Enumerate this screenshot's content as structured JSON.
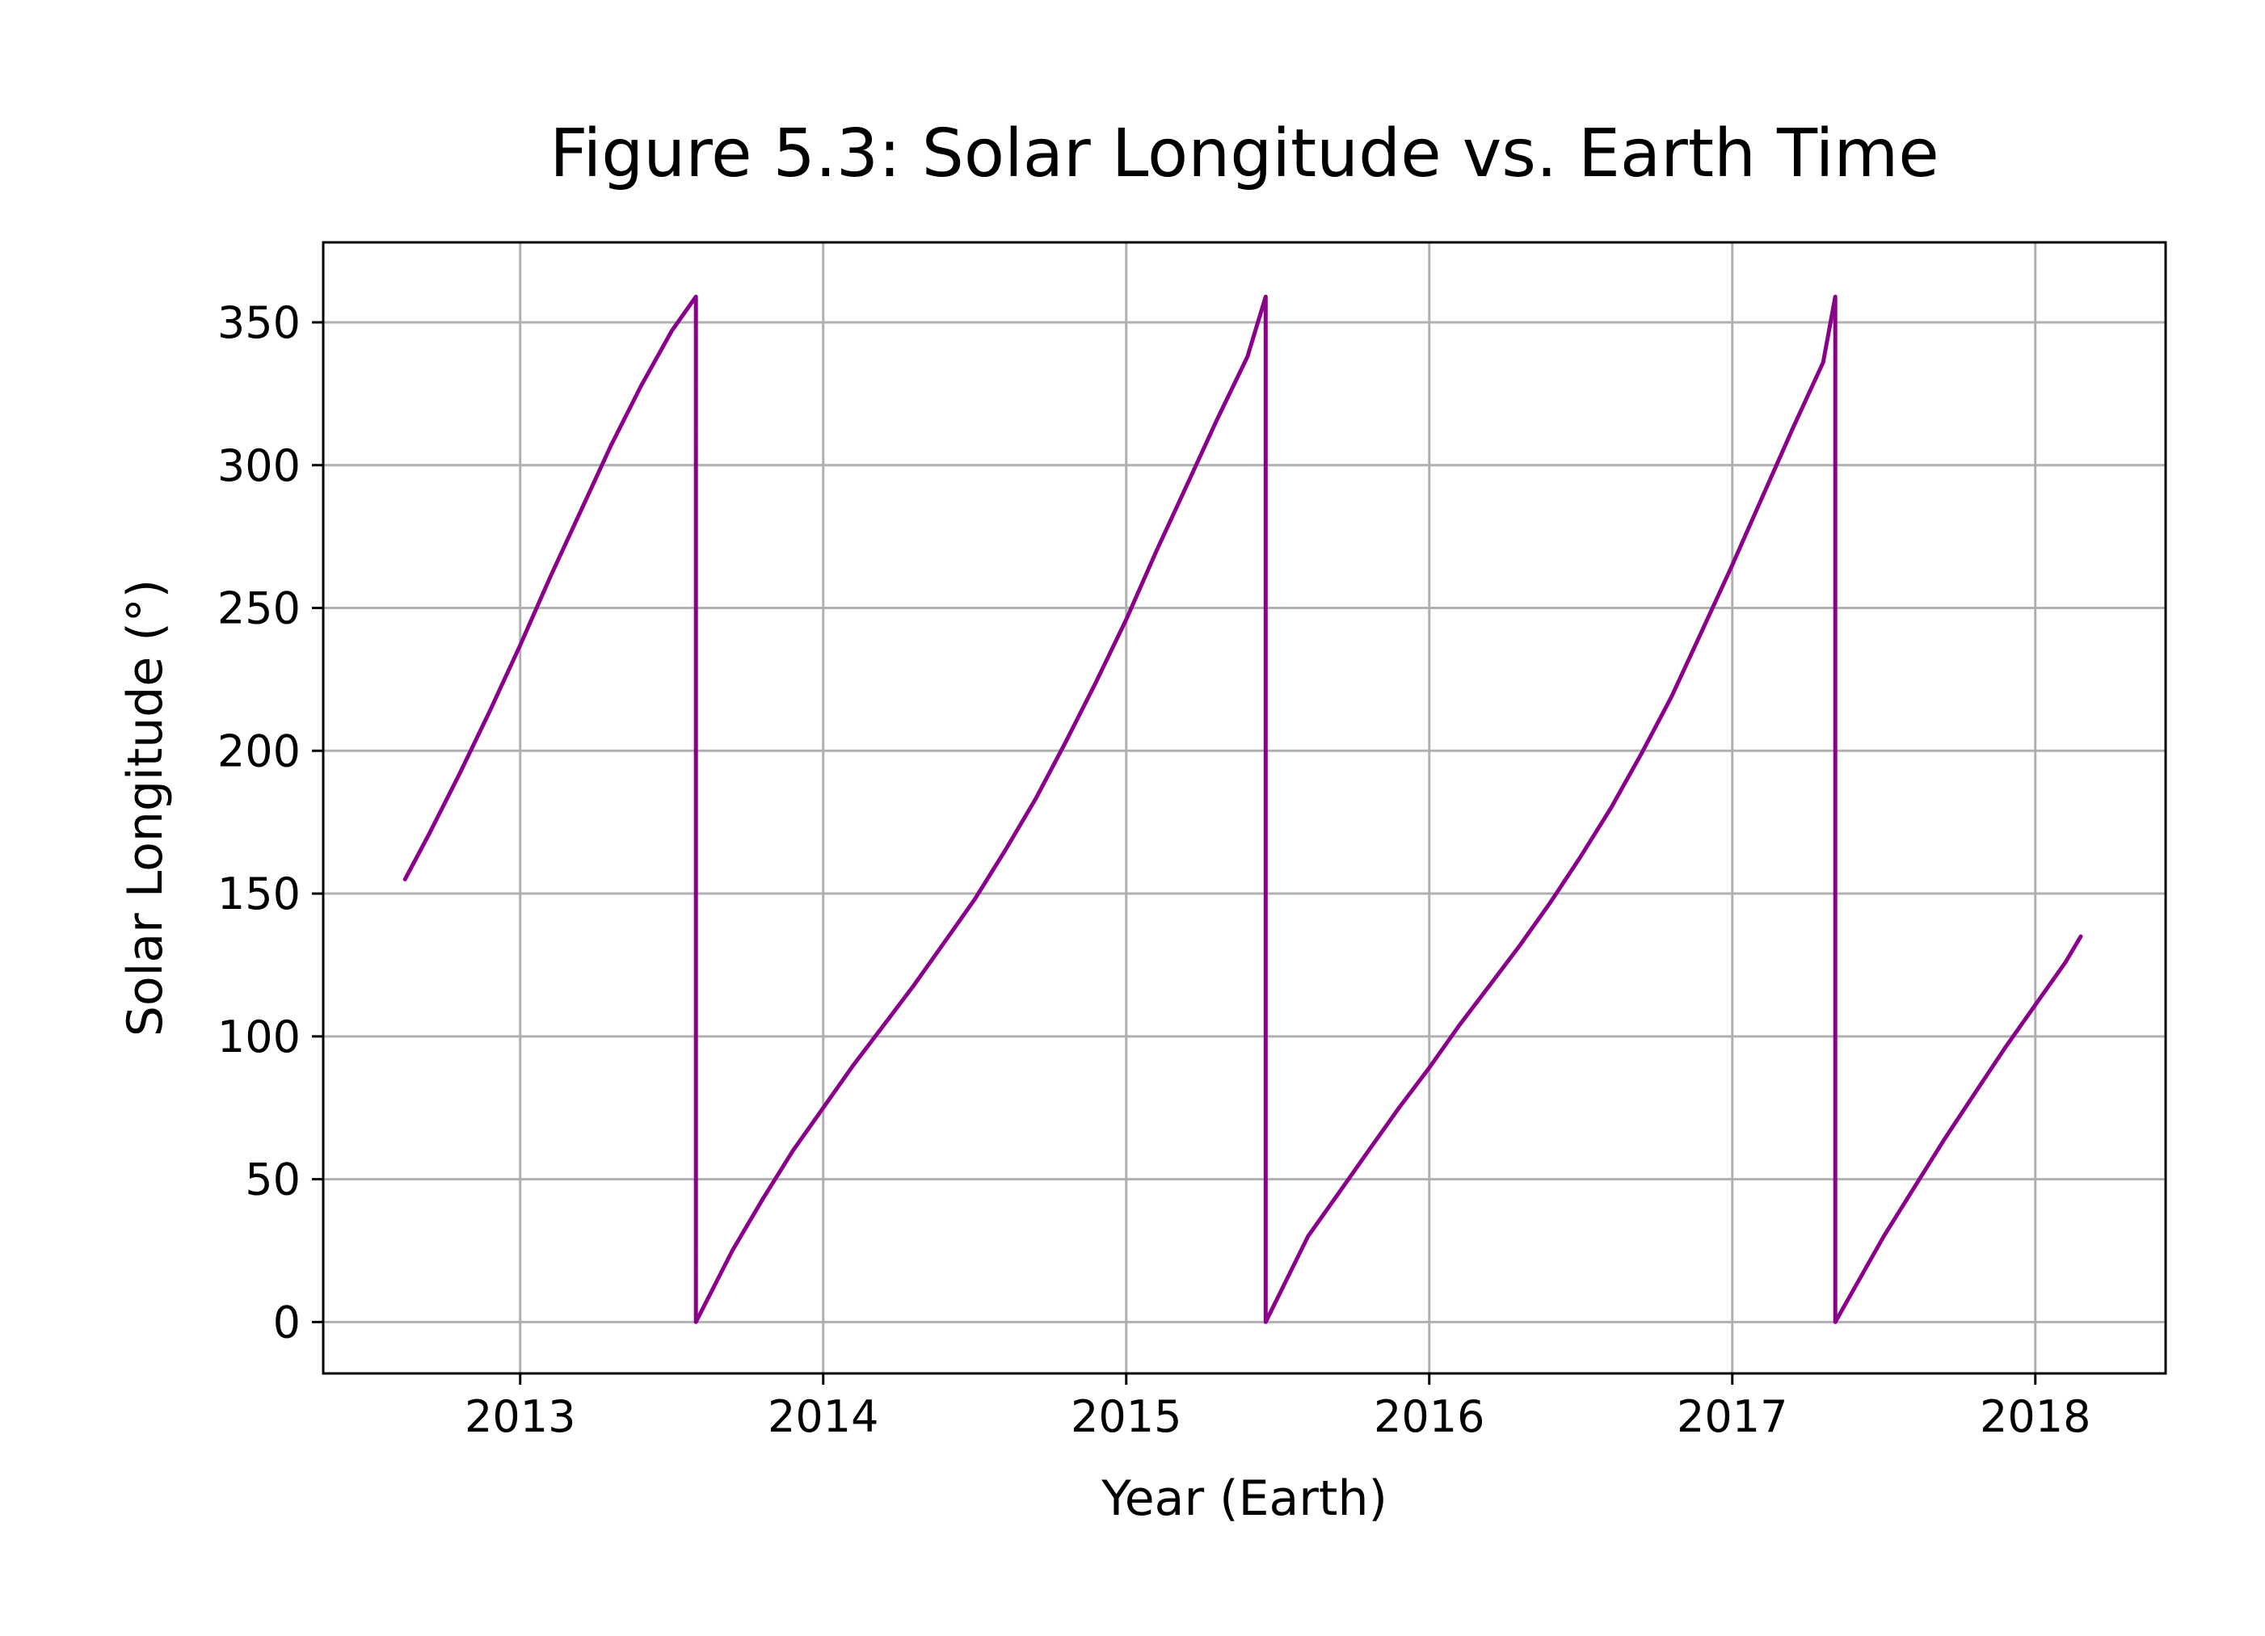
{
  "chart_data": {
    "type": "line",
    "title": "Figure 5.3: Solar Longitude vs. Earth Time",
    "xlabel": "Year (Earth)",
    "ylabel": "Solar Longitude (°)",
    "xlim": [
      2012.35,
      2018.43
    ],
    "ylim": [
      -18,
      378
    ],
    "x_ticks": [
      2013,
      2014,
      2015,
      2016,
      2017,
      2018
    ],
    "x_tick_labels": [
      "2013",
      "2014",
      "2015",
      "2016",
      "2017",
      "2018"
    ],
    "y_ticks": [
      0,
      50,
      100,
      150,
      200,
      250,
      300,
      350
    ],
    "y_tick_labels": [
      "0",
      "50",
      "100",
      "150",
      "200",
      "250",
      "300",
      "350"
    ],
    "grid": true,
    "legend": "none",
    "series": [
      {
        "color": "#8b008b",
        "x": [
          2012.62,
          2012.7,
          2012.8,
          2012.9,
          2013.0,
          2013.1,
          2013.2,
          2013.3,
          2013.4,
          2013.5,
          2013.58,
          2013.58,
          2013.7,
          2013.8,
          2013.9,
          2014.0,
          2014.1,
          2014.2,
          2014.3,
          2014.4,
          2014.5,
          2014.6,
          2014.7,
          2014.8,
          2014.9,
          2015.0,
          2015.1,
          2015.2,
          2015.3,
          2015.4,
          2015.46,
          2015.46,
          2015.6,
          2015.7,
          2015.8,
          2015.9,
          2016.0,
          2016.1,
          2016.2,
          2016.3,
          2016.4,
          2016.5,
          2016.6,
          2016.7,
          2016.8,
          2016.9,
          2017.0,
          2017.1,
          2017.2,
          2017.3,
          2017.34,
          2017.34,
          2017.5,
          2017.6,
          2017.7,
          2017.8,
          2017.9,
          2018.0,
          2018.1,
          2018.15
        ],
        "y": [
          155,
          171,
          192,
          214,
          237,
          261,
          284,
          307,
          328,
          347,
          359,
          0,
          25,
          43,
          60,
          75,
          90,
          104,
          118,
          133,
          148,
          165,
          183,
          203,
          224,
          246,
          270,
          293,
          316,
          338,
          359,
          0,
          30,
          45,
          60,
          75,
          89,
          104,
          118,
          132,
          147,
          163,
          180,
          199,
          219,
          242,
          265,
          289,
          313,
          336,
          359,
          0,
          30,
          47,
          64,
          80,
          96,
          111,
          126,
          135
        ]
      }
    ]
  }
}
